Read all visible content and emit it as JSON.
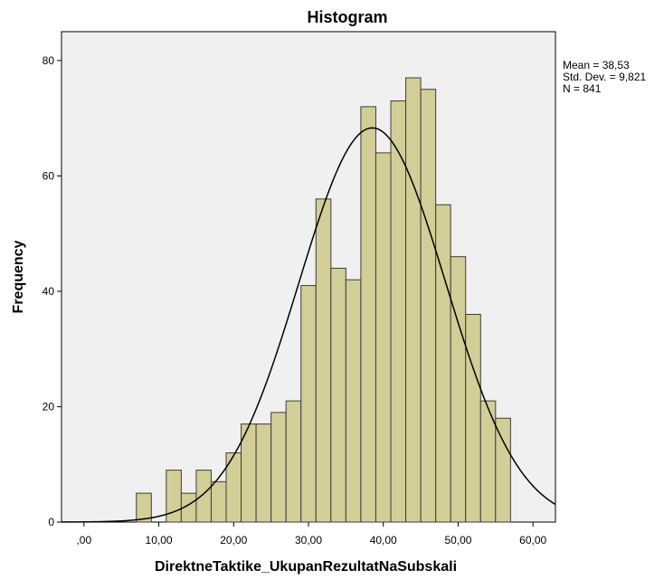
{
  "chart_data": {
    "type": "bar",
    "title": "Histogram",
    "xlabel": "DirektneTaktike_UkupanRezultatNaSubskali",
    "ylabel": "Frequency",
    "xlim": [
      -3,
      63
    ],
    "ylim": [
      0,
      85
    ],
    "x_ticks": [
      ",00",
      "10,00",
      "20,00",
      "30,00",
      "40,00",
      "50,00",
      "60,00"
    ],
    "x_tick_values": [
      0,
      10,
      20,
      30,
      40,
      50,
      60
    ],
    "y_ticks": [
      "0",
      "20",
      "40",
      "60",
      "80"
    ],
    "y_tick_values": [
      0,
      20,
      40,
      60,
      80
    ],
    "bin_width": 2,
    "bins": [
      {
        "start": 7,
        "value": 5
      },
      {
        "start": 9,
        "value": 0
      },
      {
        "start": 11,
        "value": 9
      },
      {
        "start": 13,
        "value": 5
      },
      {
        "start": 15,
        "value": 9
      },
      {
        "start": 17,
        "value": 7
      },
      {
        "start": 19,
        "value": 12
      },
      {
        "start": 21,
        "value": 17
      },
      {
        "start": 23,
        "value": 17
      },
      {
        "start": 25,
        "value": 19
      },
      {
        "start": 27,
        "value": 21
      },
      {
        "start": 29,
        "value": 41
      },
      {
        "start": 31,
        "value": 56
      },
      {
        "start": 33,
        "value": 44
      },
      {
        "start": 35,
        "value": 42
      },
      {
        "start": 37,
        "value": 72
      },
      {
        "start": 39,
        "value": 64
      },
      {
        "start": 41,
        "value": 73
      },
      {
        "start": 43,
        "value": 77
      },
      {
        "start": 45,
        "value": 75
      },
      {
        "start": 47,
        "value": 55
      },
      {
        "start": 49,
        "value": 46
      },
      {
        "start": 51,
        "value": 36
      },
      {
        "start": 53,
        "value": 21
      },
      {
        "start": 55,
        "value": 18
      }
    ],
    "normal_curve": {
      "mean": 38.53,
      "std": 9.821,
      "n": 841
    },
    "stats_lines": [
      "Mean = 38,53",
      "Std. Dev. = 9,821",
      "N = 841"
    ],
    "grid": false,
    "colors": {
      "bar_fill": "#D3CE97",
      "bar_stroke": "#3c3c3c",
      "plot_background": "#F0F0F0",
      "curve": "#000000"
    }
  }
}
